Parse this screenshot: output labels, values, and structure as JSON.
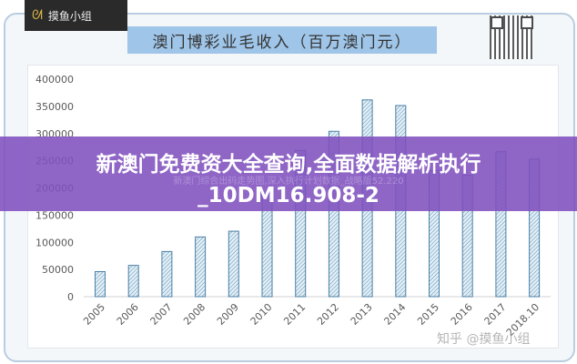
{
  "logo": {
    "text": "摸鱼小组",
    "icon": "fish-icon"
  },
  "banner": {
    "title": "新澳门免费资大全查询,全面数据解析执行_10DM16.908-2",
    "subtitle": "新澳门综合出码走势图,深入执行计划数据_战略版52.220"
  },
  "watermark": "知乎 @摸鱼小组",
  "colors": {
    "bar_fill": "#cfe4f0",
    "bar_stroke": "#4a7fa6",
    "title_bg": "#9fc5e8",
    "banner": "#8050be"
  },
  "chart_data": {
    "type": "bar",
    "title": "澳门博彩业毛收入（百万澳门元）",
    "categories": [
      "2005",
      "2006",
      "2007",
      "2008",
      "2009",
      "2010",
      "2011",
      "2012",
      "2013",
      "2014",
      "2015",
      "2016",
      "2017",
      "2018.10"
    ],
    "values": [
      46047,
      57521,
      83022,
      109826,
      120383,
      189588,
      269058,
      304139,
      361866,
      351521,
      231811,
      223210,
      266607,
      253000
    ],
    "ylim": [
      0,
      400000
    ],
    "yticks": [
      "0",
      "50000",
      "100000",
      "150000",
      "200000",
      "250000",
      "300000",
      "350000",
      "400000"
    ],
    "grid": false,
    "legend": "none"
  }
}
